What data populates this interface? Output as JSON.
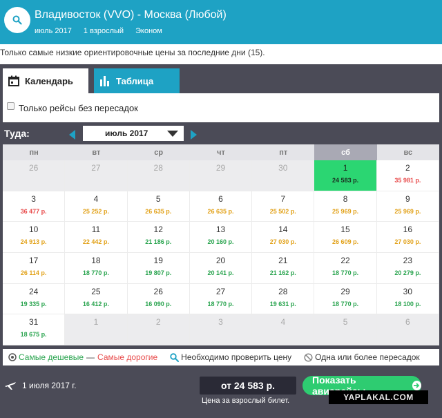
{
  "header": {
    "route": "Владивосток (VVO) - Москва (Любой)",
    "month": "июль 2017",
    "passengers": "1 взрослый",
    "cabin": "Эконом"
  },
  "note": "Только самые низкие ориентировочные цены за последние дни (15).",
  "tabs": {
    "calendar": "Календарь",
    "table": "Таблица"
  },
  "filter": {
    "direct_only": "Только рейсы без пересадок",
    "checked": false
  },
  "direction_label": "Туда:",
  "month_select": "июль 2017",
  "weekdays": [
    "пн",
    "вт",
    "ср",
    "чт",
    "пт",
    "сб",
    "вс"
  ],
  "price_colors": {
    "green": "#2aa44f",
    "orange": "#e2a21a",
    "red": "#e84b4b",
    "best_bg": "#2bd672"
  },
  "calendar": [
    {
      "day": "26",
      "price": "",
      "other": true
    },
    {
      "day": "27",
      "price": "",
      "other": true
    },
    {
      "day": "28",
      "price": "",
      "other": true
    },
    {
      "day": "29",
      "price": "",
      "other": true
    },
    {
      "day": "30",
      "price": "",
      "other": true
    },
    {
      "day": "1",
      "price": "24 583 р.",
      "color": "best",
      "best": true
    },
    {
      "day": "2",
      "price": "35 981 р.",
      "color": "red"
    },
    {
      "day": "3",
      "price": "36 477 р.",
      "color": "red"
    },
    {
      "day": "4",
      "price": "25 252 р.",
      "color": "orange"
    },
    {
      "day": "5",
      "price": "26 635 р.",
      "color": "orange"
    },
    {
      "day": "6",
      "price": "26 635 р.",
      "color": "orange"
    },
    {
      "day": "7",
      "price": "25 502 р.",
      "color": "orange"
    },
    {
      "day": "8",
      "price": "25 969 р.",
      "color": "orange"
    },
    {
      "day": "9",
      "price": "25 969 р.",
      "color": "orange"
    },
    {
      "day": "10",
      "price": "24 913 р.",
      "color": "orange"
    },
    {
      "day": "11",
      "price": "22 442 р.",
      "color": "orange"
    },
    {
      "day": "12",
      "price": "21 186 р.",
      "color": "green"
    },
    {
      "day": "13",
      "price": "20 160 р.",
      "color": "green"
    },
    {
      "day": "14",
      "price": "27 030 р.",
      "color": "orange"
    },
    {
      "day": "15",
      "price": "26 609 р.",
      "color": "orange"
    },
    {
      "day": "16",
      "price": "27 030 р.",
      "color": "orange"
    },
    {
      "day": "17",
      "price": "26 114 р.",
      "color": "orange"
    },
    {
      "day": "18",
      "price": "18 770 р.",
      "color": "green"
    },
    {
      "day": "19",
      "price": "19 807 р.",
      "color": "green"
    },
    {
      "day": "20",
      "price": "20 141 р.",
      "color": "green"
    },
    {
      "day": "21",
      "price": "21 162 р.",
      "color": "green"
    },
    {
      "day": "22",
      "price": "18 770 р.",
      "color": "green"
    },
    {
      "day": "23",
      "price": "20 279 р.",
      "color": "green"
    },
    {
      "day": "24",
      "price": "19 335 р.",
      "color": "green"
    },
    {
      "day": "25",
      "price": "16 412 р.",
      "color": "green"
    },
    {
      "day": "26",
      "price": "16 090 р.",
      "color": "green"
    },
    {
      "day": "27",
      "price": "18 770 р.",
      "color": "green"
    },
    {
      "day": "28",
      "price": "19 631 р.",
      "color": "green"
    },
    {
      "day": "29",
      "price": "18 770 р.",
      "color": "green"
    },
    {
      "day": "30",
      "price": "18 100 р.",
      "color": "green"
    },
    {
      "day": "31",
      "price": "18 675 р.",
      "color": "green"
    },
    {
      "day": "1",
      "price": "",
      "other": true
    },
    {
      "day": "2",
      "price": "",
      "other": true
    },
    {
      "day": "3",
      "price": "",
      "other": true
    },
    {
      "day": "4",
      "price": "",
      "other": true
    },
    {
      "day": "5",
      "price": "",
      "other": true
    },
    {
      "day": "6",
      "price": "",
      "other": true
    }
  ],
  "legend": {
    "cheapest": "Самые дешевые",
    "dash": "—",
    "expensive": "Самые дорогие",
    "check": "Необходимо проверить цену",
    "stops": "Одна или более пересадок"
  },
  "footer": {
    "date": "1 июля 2017 г.",
    "price": "от 24 583 р.",
    "price_caption": "Цена за взрослый билет.",
    "show_button": "Показать авиарейсы"
  },
  "watermark": "YAPLAKAL.COM",
  "icons": [
    "search-icon",
    "calendar-icon",
    "bar-chart-icon",
    "magnifier-icon",
    "no-stop-icon",
    "plane-icon",
    "arrow-right-icon"
  ]
}
